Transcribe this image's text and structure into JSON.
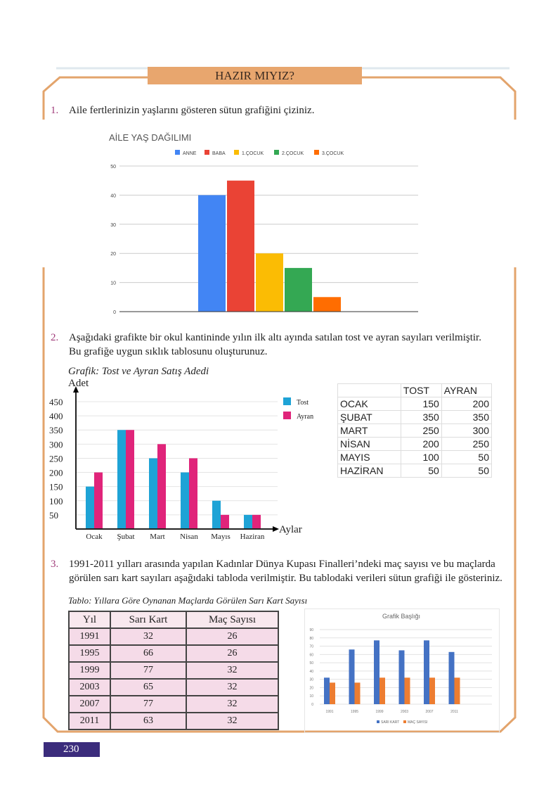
{
  "header": {
    "title": "HAZIR MIYIZ?"
  },
  "q1": {
    "number": "1.",
    "text": "Aile fertlerinizin yaşlarını gösteren sütun grafiğini çiziniz."
  },
  "q2": {
    "number": "2.",
    "line1": "Aşağıdaki grafikte bir okul kantininde yılın ilk altı ayında satılan tost ve ayran sayıları verilmiştir.",
    "line2": "Bu grafiğe uygun sıklık tablosunu oluşturunuz.",
    "caption": "Grafik: Tost ve Ayran Satış  Adedi"
  },
  "q2_table": {
    "headers": [
      "",
      "TOST",
      "AYRAN"
    ],
    "rows": [
      [
        "OCAK",
        "150",
        "200"
      ],
      [
        "ŞUBAT",
        "350",
        "350"
      ],
      [
        "MART",
        "250",
        "300"
      ],
      [
        "NİSAN",
        "200",
        "250"
      ],
      [
        "MAYIS",
        "100",
        "50"
      ],
      [
        "HAZİRAN",
        "50",
        "50"
      ]
    ]
  },
  "q3": {
    "number": "3.",
    "line1": "1991-2011 yılları arasında yapılan Kadınlar Dünya Kupası Finalleri’ndeki maç sayısı ve bu maçlarda",
    "line2": "görülen sarı kart sayıları aşağıdaki tabloda verilmiştir. Bu tablodaki verileri sütun grafiği ile gösteriniz.",
    "caption": "Tablo: Yıllara Göre Oynanan Maçlarda Görülen Sarı Kart Sayısı"
  },
  "q3_table": {
    "headers": [
      "Yıl",
      "Sarı Kart",
      "Maç Sayısı"
    ],
    "rows": [
      [
        "1991",
        "32",
        "26"
      ],
      [
        "1995",
        "66",
        "26"
      ],
      [
        "1999",
        "77",
        "32"
      ],
      [
        "2003",
        "65",
        "32"
      ],
      [
        "2007",
        "77",
        "32"
      ],
      [
        "2011",
        "63",
        "32"
      ]
    ]
  },
  "page_number": "230",
  "chart_data": [
    {
      "type": "bar",
      "title": "AİLE YAŞ DAĞILIMI",
      "categories": [
        ""
      ],
      "series": [
        {
          "name": "ANNE",
          "values": [
            40
          ],
          "color": "#4285f4"
        },
        {
          "name": "BABA",
          "values": [
            45
          ],
          "color": "#ea4335"
        },
        {
          "name": "1.ÇOCUK",
          "values": [
            20
          ],
          "color": "#fbbc04"
        },
        {
          "name": "2.ÇOCUK",
          "values": [
            15
          ],
          "color": "#34a853"
        },
        {
          "name": "3.ÇOCUK",
          "values": [
            5
          ],
          "color": "#ff6d01"
        }
      ],
      "ylim": [
        0,
        50
      ],
      "yticks": [
        0,
        10,
        20,
        30,
        40,
        50
      ],
      "legend": "top",
      "grid": true
    },
    {
      "type": "bar",
      "title": "Grafik: Tost ve Ayran Satış  Adedi",
      "ylabel": "Adet",
      "xlabel": "Aylar",
      "categories": [
        "Ocak",
        "Şubat",
        "Mart",
        "Nisan",
        "Mayıs",
        "Haziran"
      ],
      "series": [
        {
          "name": "Tost",
          "values": [
            150,
            350,
            250,
            200,
            100,
            50
          ],
          "color": "#1ea3d6"
        },
        {
          "name": "Ayran",
          "values": [
            200,
            350,
            300,
            250,
            50,
            50
          ],
          "color": "#e0247a"
        }
      ],
      "ylim": [
        0,
        450
      ],
      "yticks": [
        50,
        100,
        150,
        200,
        250,
        300,
        350,
        400,
        450
      ],
      "legend": "right",
      "grid": true
    },
    {
      "type": "bar",
      "title": "Grafik Başlığı",
      "categories": [
        "1991",
        "1995",
        "1999",
        "2003",
        "2007",
        "2011"
      ],
      "series": [
        {
          "name": "SARI KART",
          "values": [
            32,
            66,
            77,
            65,
            77,
            63
          ],
          "color": "#4472c4"
        },
        {
          "name": "MAÇ SAYISI",
          "values": [
            26,
            26,
            32,
            32,
            32,
            32
          ],
          "color": "#ed7d31"
        }
      ],
      "ylim": [
        0,
        90
      ],
      "yticks": [
        0,
        10,
        20,
        30,
        40,
        50,
        60,
        70,
        80,
        90
      ],
      "legend": "bottom",
      "grid": true
    }
  ]
}
